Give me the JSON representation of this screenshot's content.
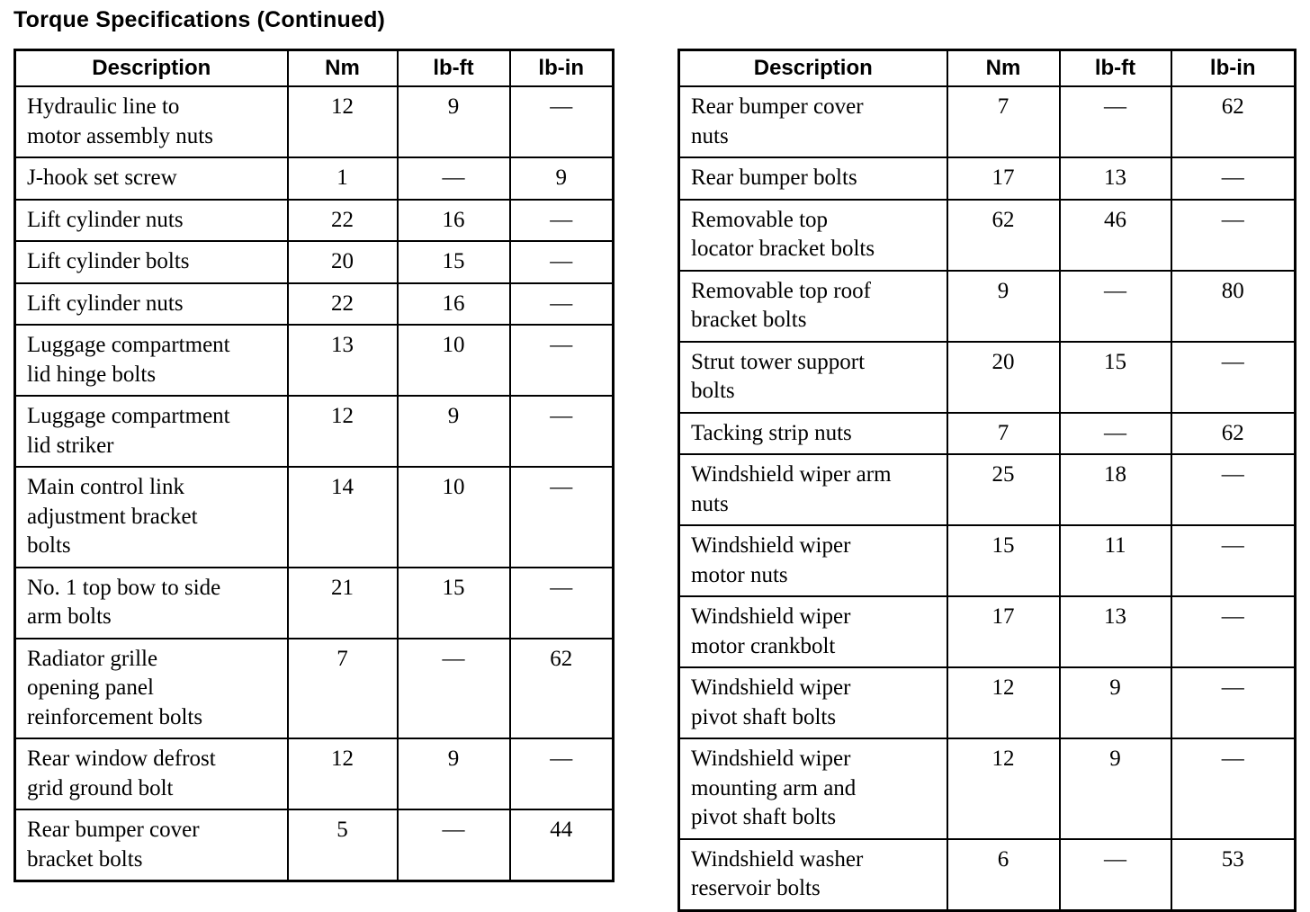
{
  "page": {
    "title": "Torque Specifications (Continued)"
  },
  "tables": [
    {
      "position": "left",
      "headers": [
        "Description",
        "Nm",
        "lb-ft",
        "lb-in"
      ],
      "rows": [
        [
          "Hydraulic line to motor assembly nuts",
          "12",
          "9",
          "—"
        ],
        [
          "J-hook set screw",
          "1",
          "—",
          "9"
        ],
        [
          "Lift cylinder nuts",
          "22",
          "16",
          "—"
        ],
        [
          "Lift cylinder bolts",
          "20",
          "15",
          "—"
        ],
        [
          "Lift cylinder nuts",
          "22",
          "16",
          "—"
        ],
        [
          "Luggage compartment lid hinge bolts",
          "13",
          "10",
          "—"
        ],
        [
          "Luggage compartment lid striker",
          "12",
          "9",
          "—"
        ],
        [
          "Main control link adjustment bracket bolts",
          "14",
          "10",
          "—"
        ],
        [
          "No. 1 top bow to side arm bolts",
          "21",
          "15",
          "—"
        ],
        [
          "Radiator grille opening panel reinforcement bolts",
          "7",
          "—",
          "62"
        ],
        [
          "Rear window defrost grid ground bolt",
          "12",
          "9",
          "—"
        ],
        [
          "Rear bumper cover bracket bolts",
          "5",
          "—",
          "44"
        ]
      ]
    },
    {
      "position": "right",
      "headers": [
        "Description",
        "Nm",
        "lb-ft",
        "lb-in"
      ],
      "rows": [
        [
          "Rear bumper cover nuts",
          "7",
          "—",
          "62"
        ],
        [
          "Rear bumper bolts",
          "17",
          "13",
          "—"
        ],
        [
          "Removable top locator bracket bolts",
          "62",
          "46",
          "—"
        ],
        [
          "Removable top roof bracket bolts",
          "9",
          "—",
          "80"
        ],
        [
          "Strut tower support bolts",
          "20",
          "15",
          "—"
        ],
        [
          "Tacking strip nuts",
          "7",
          "—",
          "62"
        ],
        [
          "Windshield wiper arm nuts",
          "25",
          "18",
          "—"
        ],
        [
          "Windshield wiper motor nuts",
          "15",
          "11",
          "—"
        ],
        [
          "Windshield wiper motor crankbolt",
          "17",
          "13",
          "—"
        ],
        [
          "Windshield wiper pivot shaft bolts",
          "12",
          "9",
          "—"
        ],
        [
          "Windshield wiper mounting arm and pivot shaft bolts",
          "12",
          "9",
          "—"
        ],
        [
          "Windshield washer reservoir bolts",
          "6",
          "—",
          "53"
        ]
      ]
    }
  ]
}
